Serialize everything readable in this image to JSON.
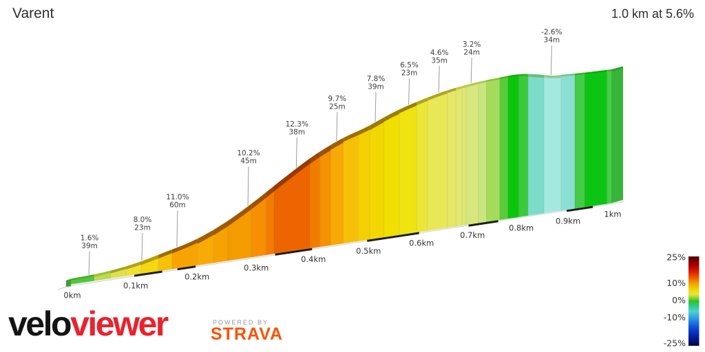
{
  "header": {
    "title": "Varent",
    "summary": "1.0 km at 5.6%"
  },
  "footer": {
    "logo_black": "velo",
    "logo_red": "viewer",
    "powered_by": "POWERED BY",
    "strava": "STRAVA",
    "logo_red_color": "#e8232e",
    "strava_color": "#fc5200"
  },
  "chart_data": {
    "type": "area",
    "title": "Varent",
    "summary": "1.0 km at 5.6%",
    "total_distance_km": 1.0,
    "avg_gradient_pct": 5.6,
    "x_unit": "km",
    "xlim": [
      0,
      1
    ],
    "x_ticks": [
      {
        "km": 0.0,
        "label": "0km"
      },
      {
        "km": 0.1,
        "label": "0.1km"
      },
      {
        "km": 0.2,
        "label": "0.2km"
      },
      {
        "km": 0.3,
        "label": "0.3km"
      },
      {
        "km": 0.4,
        "label": "0.4km"
      },
      {
        "km": 0.5,
        "label": "0.5km"
      },
      {
        "km": 0.6,
        "label": "0.6km"
      },
      {
        "km": 0.7,
        "label": "0.7km"
      },
      {
        "km": 0.8,
        "label": "0.8km"
      },
      {
        "km": 0.9,
        "label": "0.9km"
      },
      {
        "km": 1.0,
        "label": "1km"
      }
    ],
    "profile_m": [
      [
        0,
        0
      ],
      [
        0.05,
        0.6
      ],
      [
        0.1,
        2.3
      ],
      [
        0.15,
        5.2
      ],
      [
        0.2,
        8.5
      ],
      [
        0.25,
        13.8
      ],
      [
        0.3,
        20.8
      ],
      [
        0.35,
        28.5
      ],
      [
        0.4,
        35.6
      ],
      [
        0.45,
        41.0
      ],
      [
        0.5,
        44.7
      ],
      [
        0.55,
        49.1
      ],
      [
        0.6,
        52.3
      ],
      [
        0.65,
        54.7
      ],
      [
        0.7,
        56.1
      ],
      [
        0.75,
        56.8
      ],
      [
        0.8,
        57.0
      ],
      [
        0.84,
        55.7
      ],
      [
        0.87,
        54.35
      ],
      [
        0.9,
        54.05
      ],
      [
        0.95,
        53.55
      ],
      [
        1.0,
        53.3
      ]
    ],
    "bands": [
      {
        "from": 0.0,
        "to": 0.036,
        "color": "#54c73c"
      },
      {
        "from": 0.036,
        "to": 0.062,
        "color": "#badb50"
      },
      {
        "from": 0.062,
        "to": 0.087,
        "color": "#dde24c"
      },
      {
        "from": 0.087,
        "to": 0.111,
        "color": "#efe034"
      },
      {
        "from": 0.111,
        "to": 0.139,
        "color": "#f5d714"
      },
      {
        "from": 0.139,
        "to": 0.161,
        "color": "#f6c107"
      },
      {
        "from": 0.161,
        "to": 0.203,
        "color": "#f7a403"
      },
      {
        "from": 0.203,
        "to": 0.23,
        "color": "#f8aa06"
      },
      {
        "from": 0.23,
        "to": 0.254,
        "color": "#f7a203"
      },
      {
        "from": 0.254,
        "to": 0.294,
        "color": "#f59c02"
      },
      {
        "from": 0.294,
        "to": 0.319,
        "color": "#f69002"
      },
      {
        "from": 0.319,
        "to": 0.333,
        "color": "#f27b00"
      },
      {
        "from": 0.333,
        "to": 0.396,
        "color": "#ed6500"
      },
      {
        "from": 0.396,
        "to": 0.414,
        "color": "#f07d00"
      },
      {
        "from": 0.414,
        "to": 0.433,
        "color": "#f49202"
      },
      {
        "from": 0.433,
        "to": 0.456,
        "color": "#f8a906"
      },
      {
        "from": 0.456,
        "to": 0.483,
        "color": "#f6c008"
      },
      {
        "from": 0.483,
        "to": 0.505,
        "color": "#f4cf04"
      },
      {
        "from": 0.505,
        "to": 0.531,
        "color": "#f2d800"
      },
      {
        "from": 0.531,
        "to": 0.56,
        "color": "#f0df00"
      },
      {
        "from": 0.56,
        "to": 0.593,
        "color": "#efe412"
      },
      {
        "from": 0.593,
        "to": 0.614,
        "color": "#ece636"
      },
      {
        "from": 0.614,
        "to": 0.653,
        "color": "#e8e755"
      },
      {
        "from": 0.653,
        "to": 0.67,
        "color": "#e5e766"
      },
      {
        "from": 0.67,
        "to": 0.682,
        "color": "#e2e76f"
      },
      {
        "from": 0.682,
        "to": 0.69,
        "color": "#dfe776"
      },
      {
        "from": 0.69,
        "to": 0.715,
        "color": "#d7e77e"
      },
      {
        "from": 0.715,
        "to": 0.731,
        "color": "#cbe680"
      },
      {
        "from": 0.731,
        "to": 0.758,
        "color": "#a5db5b"
      },
      {
        "from": 0.758,
        "to": 0.775,
        "color": "#58cc3a"
      },
      {
        "from": 0.775,
        "to": 0.798,
        "color": "#0cc40c"
      },
      {
        "from": 0.798,
        "to": 0.817,
        "color": "#3bca3b"
      },
      {
        "from": 0.817,
        "to": 0.851,
        "color": "#7cdcc8"
      },
      {
        "from": 0.851,
        "to": 0.888,
        "color": "#a5e8e0"
      },
      {
        "from": 0.888,
        "to": 0.918,
        "color": "#8adfd2"
      },
      {
        "from": 0.918,
        "to": 0.94,
        "color": "#45cb45"
      },
      {
        "from": 0.94,
        "to": 0.99,
        "color": "#0cc414"
      },
      {
        "from": 0.99,
        "to": 1.0,
        "color": "#47cd47"
      }
    ],
    "labels": [
      {
        "pct": "1.6%",
        "length": "39m",
        "km": 0.028,
        "dy": 12
      },
      {
        "pct": "8.0%",
        "length": "23m",
        "km": 0.112,
        "dy": 6
      },
      {
        "pct": "11.0%",
        "length": "60m",
        "km": 0.169,
        "dy": -7
      },
      {
        "pct": "10.2%",
        "length": "45m",
        "km": 0.288,
        "dy": -11
      },
      {
        "pct": "12.3%",
        "length": "38m",
        "km": 0.372,
        "dy": 2
      },
      {
        "pct": "9.7%",
        "length": "25m",
        "km": 0.444,
        "dy": 4
      },
      {
        "pct": "7.8%",
        "length": "39m",
        "km": 0.515,
        "dy": 3
      },
      {
        "pct": "6.5%",
        "length": "23m",
        "km": 0.578,
        "dy": 8
      },
      {
        "pct": "4.6%",
        "length": "35m",
        "km": 0.636,
        "dy": 7
      },
      {
        "pct": "3.2%",
        "length": "24m",
        "km": 0.7,
        "dy": 9
      },
      {
        "pct": "-2.6%",
        "length": "34m",
        "km": 0.866,
        "dy": 3
      }
    ],
    "baseline_dashes": [
      [
        0.1,
        0.145
      ],
      [
        0.17,
        0.2
      ],
      [
        0.335,
        0.4
      ],
      [
        0.5,
        0.598
      ],
      [
        0.695,
        0.755
      ],
      [
        0.9,
        0.958
      ]
    ],
    "legend": {
      "position": "bottom-right",
      "ticks": [
        {
          "value": 25,
          "label": "25%"
        },
        {
          "value": 10,
          "label": "10%"
        },
        {
          "value": 0,
          "label": "0%"
        },
        {
          "value": -10,
          "label": "-10%"
        },
        {
          "value": -25,
          "label": "-25%"
        }
      ],
      "stops": [
        {
          "pct": 26,
          "color": "#4e0000"
        },
        {
          "pct": 21,
          "color": "#a80000"
        },
        {
          "pct": 17,
          "color": "#dc2000"
        },
        {
          "pct": 13,
          "color": "#f06800"
        },
        {
          "pct": 10,
          "color": "#f0a800"
        },
        {
          "pct": 7,
          "color": "#eed400"
        },
        {
          "pct": 4,
          "color": "#e6e63e"
        },
        {
          "pct": 2,
          "color": "#98d42a"
        },
        {
          "pct": 0,
          "color": "#2cc22c"
        },
        {
          "pct": -3,
          "color": "#34c98e"
        },
        {
          "pct": -6,
          "color": "#4ed2cc"
        },
        {
          "pct": -10,
          "color": "#2a9ae6"
        },
        {
          "pct": -15,
          "color": "#1250d8"
        },
        {
          "pct": -20,
          "color": "#0424a8"
        },
        {
          "pct": -26,
          "color": "#020247"
        }
      ]
    }
  }
}
